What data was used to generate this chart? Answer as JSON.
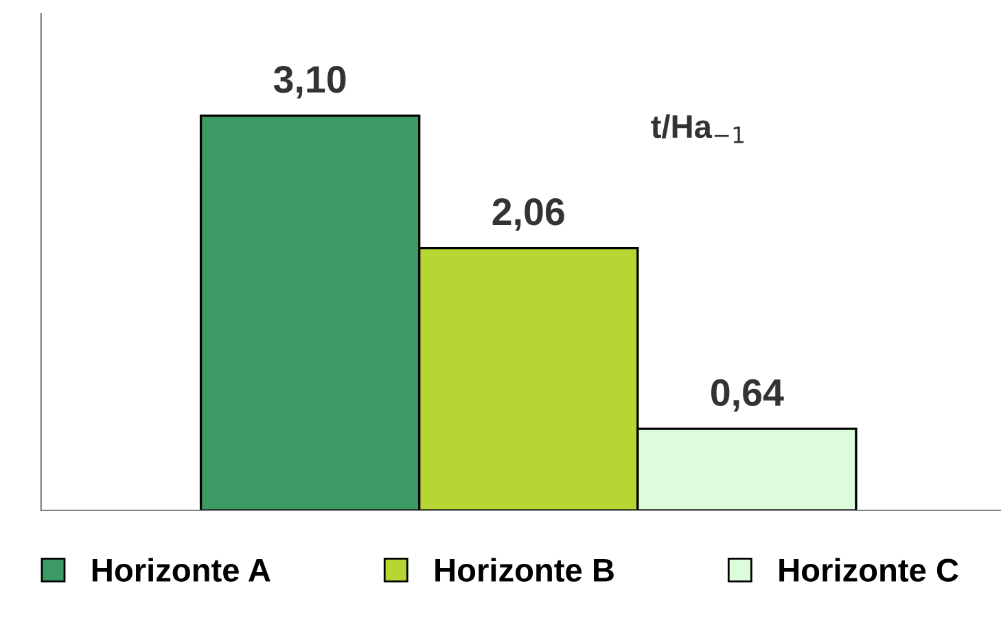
{
  "chart_data": {
    "type": "bar",
    "categories": [
      null
    ],
    "series": [
      {
        "name": "Horizonte A",
        "color": "#3c9a64",
        "values": [
          3.1
        ],
        "value_labels": [
          "3,10"
        ]
      },
      {
        "name": "Horizonte B",
        "color": "#b5d633",
        "values": [
          2.06
        ],
        "value_labels": [
          "2,06"
        ]
      },
      {
        "name": "Horizonte C",
        "color": "#dcfcdc",
        "values": [
          0.64
        ],
        "value_labels": [
          "0,64"
        ]
      }
    ],
    "ylim": [
      0,
      3.9
    ],
    "legend": "bottom",
    "annotations": [
      "t/Ha$_{−1}$"
    ]
  }
}
